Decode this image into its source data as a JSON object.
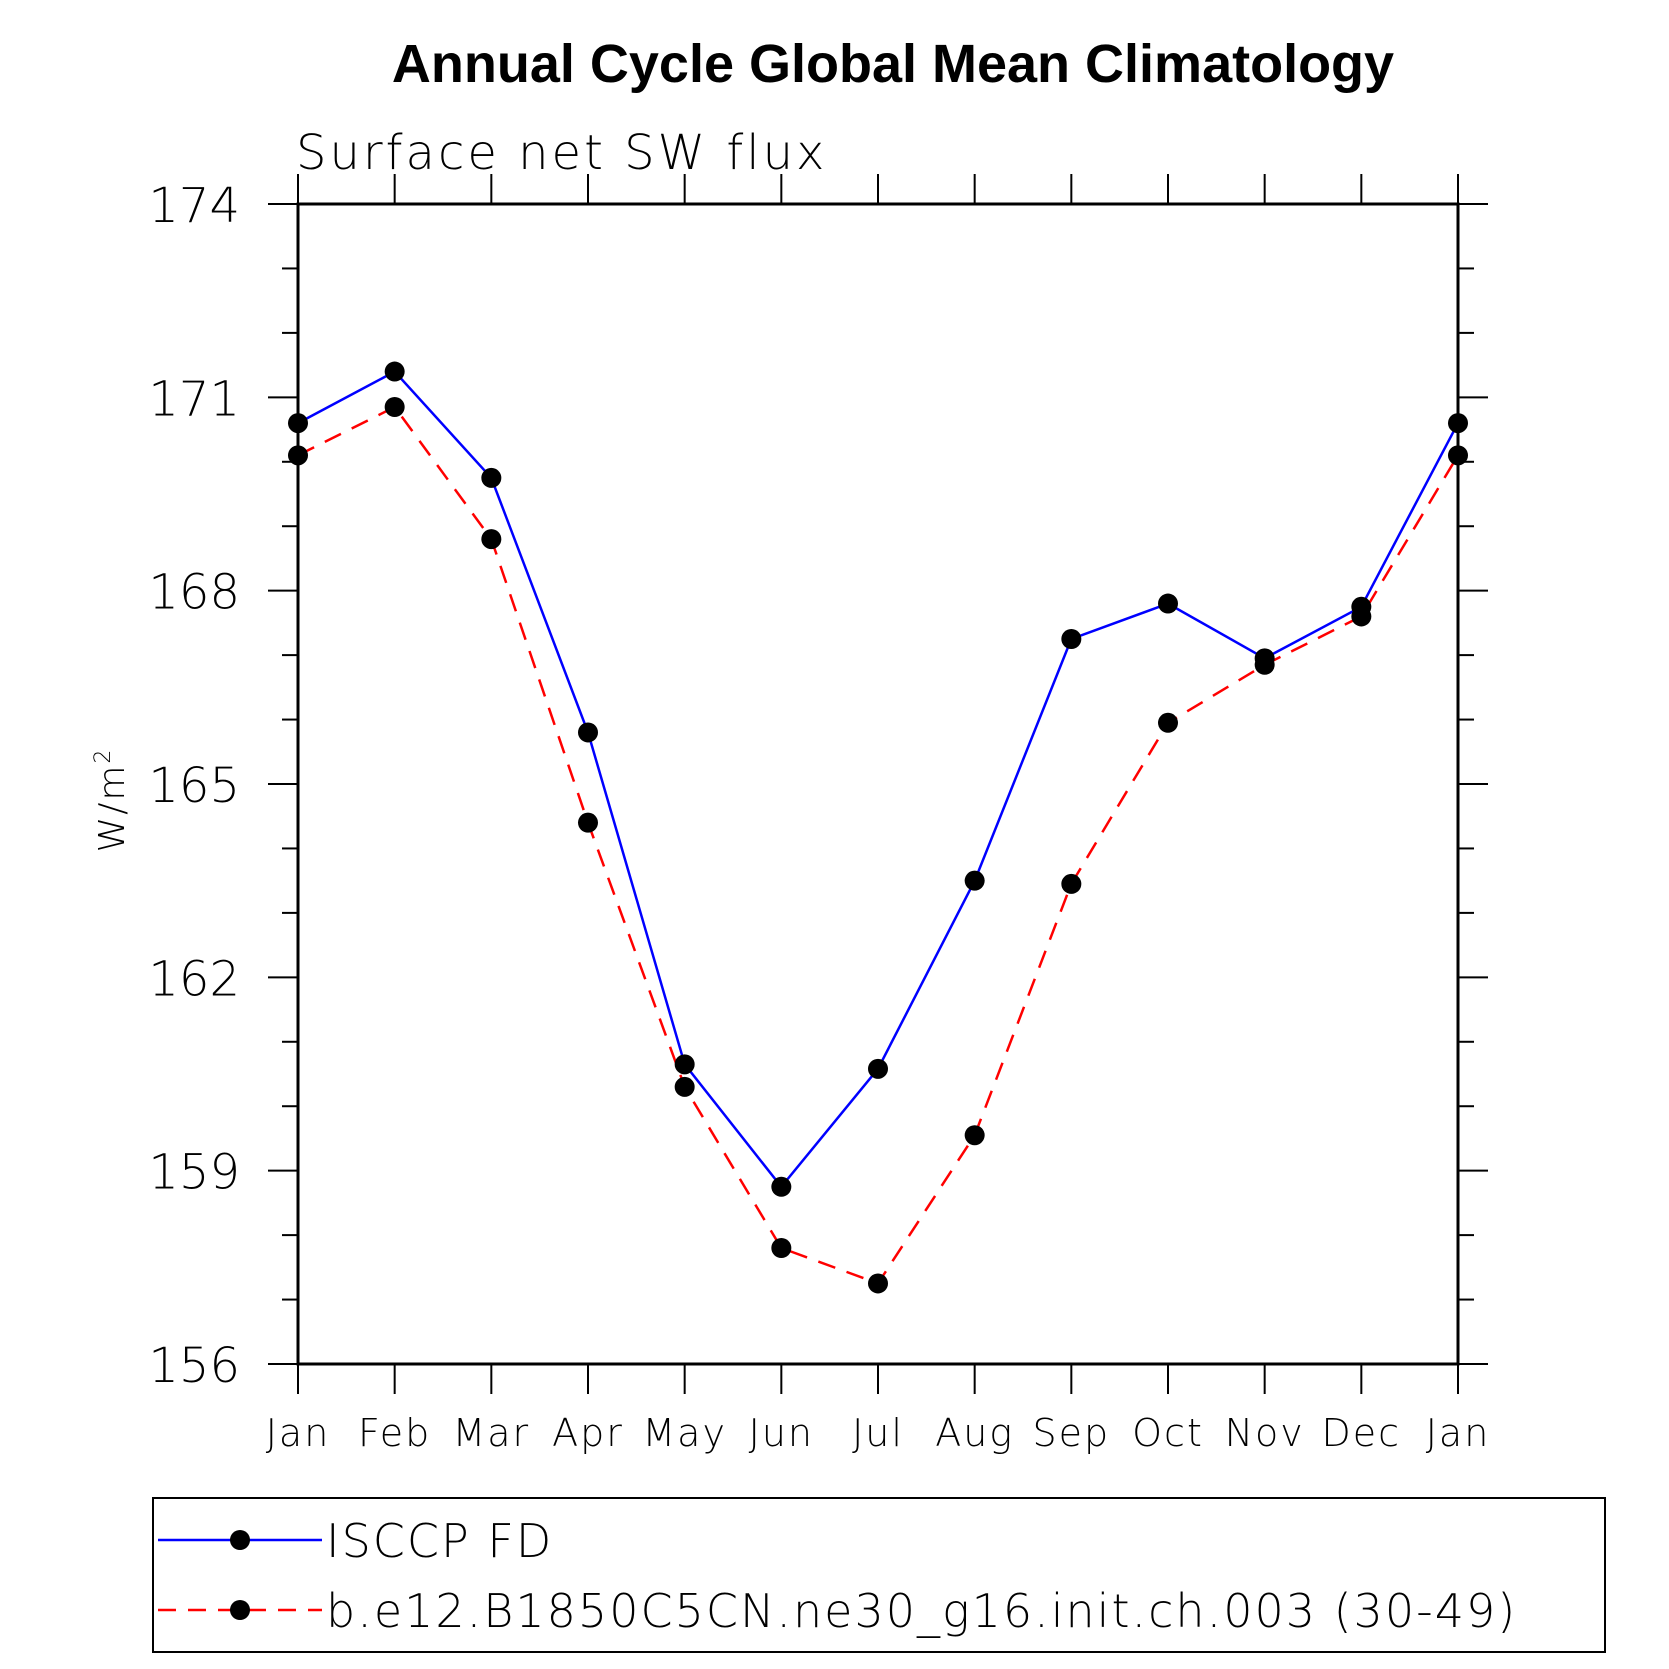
{
  "chart_data": {
    "type": "line",
    "title": "Annual Cycle Global Mean Climatology",
    "subtitle": "Surface net SW flux",
    "ylabel": "W/m",
    "ylabel_sup": "2",
    "xlabel": "",
    "categories": [
      "Jan",
      "Feb",
      "Mar",
      "Apr",
      "May",
      "Jun",
      "Jul",
      "Aug",
      "Sep",
      "Oct",
      "Nov",
      "Dec",
      "Jan"
    ],
    "ylim": [
      156,
      174
    ],
    "yticks": [
      "156",
      "159",
      "162",
      "165",
      "168",
      "171",
      "174"
    ],
    "grid": false,
    "legend_position": "bottom",
    "series": [
      {
        "name": "ISCCP FD",
        "color": "#0000ff",
        "style": "solid",
        "marker": "filled-circle",
        "values": [
          170.6,
          171.4,
          169.75,
          165.8,
          160.65,
          158.75,
          160.58,
          163.5,
          167.25,
          167.8,
          166.95,
          167.75,
          170.6
        ]
      },
      {
        "name": "b.e12.B1850C5CN.ne30_g16.init.ch.003 (30-49)",
        "color": "#ff0000",
        "style": "dashed",
        "marker": "filled-circle",
        "values": [
          170.1,
          170.85,
          168.8,
          164.4,
          160.3,
          157.8,
          157.25,
          159.55,
          163.45,
          165.95,
          166.85,
          167.6,
          170.1
        ]
      }
    ]
  }
}
